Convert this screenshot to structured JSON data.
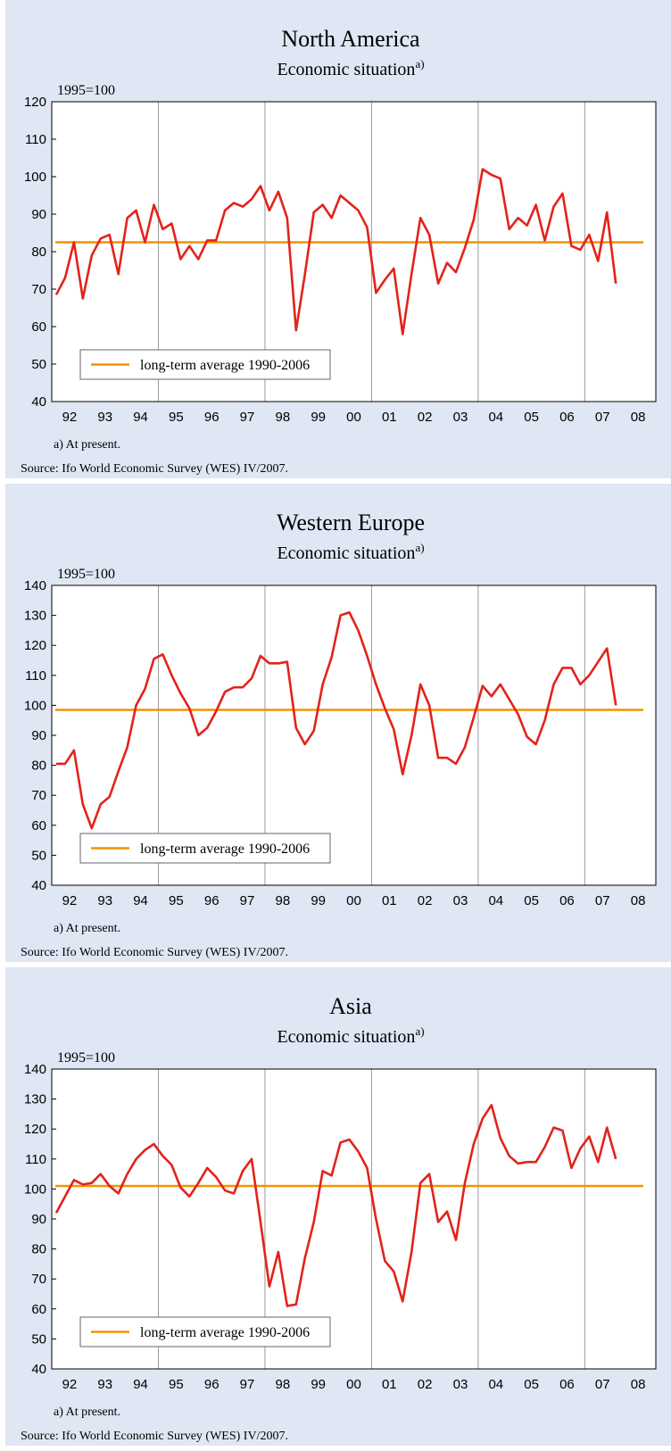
{
  "chart_data": [
    {
      "type": "line",
      "title": "North America",
      "subtitle": "Economic situation",
      "subtitle_note": "a)",
      "y_label": "1995=100",
      "footnote": "a) At present.",
      "source": "Source: Ifo World Economic Survey (WES) IV/2007.",
      "xlim": [
        1992,
        2009
      ],
      "ylim": [
        40,
        120
      ],
      "yticks": [
        40,
        50,
        60,
        70,
        80,
        90,
        100,
        110,
        120
      ],
      "xticks": [
        {
          "value": 1992.5,
          "label": "92"
        },
        {
          "value": 1993.5,
          "label": "93"
        },
        {
          "value": 1994.5,
          "label": "94"
        },
        {
          "value": 1995.5,
          "label": "95"
        },
        {
          "value": 1996.5,
          "label": "96"
        },
        {
          "value": 1997.5,
          "label": "97"
        },
        {
          "value": 1998.5,
          "label": "98"
        },
        {
          "value": 1999.5,
          "label": "99"
        },
        {
          "value": 2000.5,
          "label": "00"
        },
        {
          "value": 2001.5,
          "label": "01"
        },
        {
          "value": 2002.5,
          "label": "02"
        },
        {
          "value": 2003.5,
          "label": "03"
        },
        {
          "value": 2004.5,
          "label": "04"
        },
        {
          "value": 2005.5,
          "label": "05"
        },
        {
          "value": 2006.5,
          "label": "06"
        },
        {
          "value": 2007.5,
          "label": "07"
        },
        {
          "value": 2008.5,
          "label": "08"
        }
      ],
      "xgrid": [
        1995,
        1998,
        2001,
        2004,
        2007
      ],
      "legend": "lower left",
      "x": [
        1992.125,
        1992.375,
        1992.625,
        1992.875,
        1993.125,
        1993.375,
        1993.625,
        1993.875,
        1994.125,
        1994.375,
        1994.625,
        1994.875,
        1995.125,
        1995.375,
        1995.625,
        1995.875,
        1996.125,
        1996.375,
        1996.625,
        1996.875,
        1997.125,
        1997.375,
        1997.625,
        1997.875,
        1998.125,
        1998.375,
        1998.625,
        1998.875,
        1999.125,
        1999.375,
        1999.625,
        1999.875,
        2000.125,
        2000.375,
        2000.625,
        2000.875,
        2001.125,
        2001.375,
        2001.625,
        2001.875,
        2002.125,
        2002.375,
        2002.625,
        2002.875,
        2003.125,
        2003.375,
        2003.625,
        2003.875,
        2004.125,
        2004.375,
        2004.625,
        2004.875,
        2005.125,
        2005.375,
        2005.625,
        2005.875,
        2006.125,
        2006.375,
        2006.625,
        2006.875,
        2007.125,
        2007.375,
        2007.625,
        2007.875
      ],
      "series": [
        {
          "color": "#e2231a",
          "values": [
            68.5,
            73,
            82.5,
            67.5,
            79,
            83.5,
            84.5,
            74,
            89,
            91,
            82.5,
            92.5,
            86,
            87.5,
            78,
            81.5,
            78,
            83,
            83,
            91,
            93,
            92,
            94,
            97.5,
            91,
            96,
            89,
            59,
            74,
            90.5,
            92.5,
            89,
            95,
            93,
            91,
            86.5,
            69,
            72.5,
            75.5,
            58,
            74,
            89,
            84.5,
            71.5,
            77,
            74.5,
            81,
            88.5,
            102,
            100.5,
            99.5,
            86,
            89,
            87,
            92.5,
            83,
            92,
            95.5,
            81.5,
            80.5,
            84.5,
            77.5,
            90.5,
            71.5
          ]
        }
      ],
      "average": {
        "name": "long-term average 1990-2006",
        "color": "#f39200",
        "value": 82.5
      }
    },
    {
      "type": "line",
      "title": "Western Europe",
      "subtitle": "Economic situation",
      "subtitle_note": "a)",
      "y_label": "1995=100",
      "footnote": "a) At present.",
      "source": "Source: Ifo World Economic Survey (WES) IV/2007.",
      "xlim": [
        1992,
        2009
      ],
      "ylim": [
        40,
        140
      ],
      "yticks": [
        40,
        50,
        60,
        70,
        80,
        90,
        100,
        110,
        120,
        130,
        140
      ],
      "xticks": [
        {
          "value": 1992.5,
          "label": "92"
        },
        {
          "value": 1993.5,
          "label": "93"
        },
        {
          "value": 1994.5,
          "label": "94"
        },
        {
          "value": 1995.5,
          "label": "95"
        },
        {
          "value": 1996.5,
          "label": "96"
        },
        {
          "value": 1997.5,
          "label": "97"
        },
        {
          "value": 1998.5,
          "label": "98"
        },
        {
          "value": 1999.5,
          "label": "99"
        },
        {
          "value": 2000.5,
          "label": "00"
        },
        {
          "value": 2001.5,
          "label": "01"
        },
        {
          "value": 2002.5,
          "label": "02"
        },
        {
          "value": 2003.5,
          "label": "03"
        },
        {
          "value": 2004.5,
          "label": "04"
        },
        {
          "value": 2005.5,
          "label": "05"
        },
        {
          "value": 2006.5,
          "label": "06"
        },
        {
          "value": 2007.5,
          "label": "07"
        },
        {
          "value": 2008.5,
          "label": "08"
        }
      ],
      "xgrid": [
        1995,
        1998,
        2001,
        2004,
        2007
      ],
      "legend": "lower left",
      "x": [
        1992.125,
        1992.375,
        1992.625,
        1992.875,
        1993.125,
        1993.375,
        1993.625,
        1993.875,
        1994.125,
        1994.375,
        1994.625,
        1994.875,
        1995.125,
        1995.375,
        1995.625,
        1995.875,
        1996.125,
        1996.375,
        1996.625,
        1996.875,
        1997.125,
        1997.375,
        1997.625,
        1997.875,
        1998.125,
        1998.375,
        1998.625,
        1998.875,
        1999.125,
        1999.375,
        1999.625,
        1999.875,
        2000.125,
        2000.375,
        2000.625,
        2000.875,
        2001.125,
        2001.375,
        2001.625,
        2001.875,
        2002.125,
        2002.375,
        2002.625,
        2002.875,
        2003.125,
        2003.375,
        2003.625,
        2003.875,
        2004.125,
        2004.375,
        2004.625,
        2004.875,
        2005.125,
        2005.375,
        2005.625,
        2005.875,
        2006.125,
        2006.375,
        2006.625,
        2006.875,
        2007.125,
        2007.375,
        2007.625,
        2007.875
      ],
      "series": [
        {
          "color": "#e2231a",
          "values": [
            80.5,
            80.5,
            85,
            67,
            59,
            67,
            69.5,
            78,
            86,
            100,
            105.5,
            115.5,
            117,
            110,
            104,
            99,
            90,
            92.5,
            98,
            104.5,
            106,
            106,
            109,
            116.5,
            114,
            114,
            114.5,
            92.5,
            87,
            91.5,
            107,
            116,
            130,
            131,
            125,
            116.5,
            107,
            99,
            92,
            77,
            90,
            107,
            100,
            82.5,
            82.5,
            80.5,
            86,
            96,
            106.5,
            103,
            107,
            102,
            97,
            89.5,
            87,
            95,
            107,
            112.5,
            112.5,
            107,
            110,
            114.5,
            119,
            100
          ]
        }
      ],
      "average": {
        "name": "long-term average 1990-2006",
        "color": "#f39200",
        "value": 98.5
      }
    },
    {
      "type": "line",
      "title": "Asia",
      "subtitle": "Economic situation",
      "subtitle_note": "a)",
      "y_label": "1995=100",
      "footnote": "a) At present.",
      "source": "Source: Ifo World Economic Survey (WES) IV/2007.",
      "xlim": [
        1992,
        2009
      ],
      "ylim": [
        40,
        140
      ],
      "yticks": [
        40,
        50,
        60,
        70,
        80,
        90,
        100,
        110,
        120,
        130,
        140
      ],
      "xticks": [
        {
          "value": 1992.5,
          "label": "92"
        },
        {
          "value": 1993.5,
          "label": "93"
        },
        {
          "value": 1994.5,
          "label": "94"
        },
        {
          "value": 1995.5,
          "label": "95"
        },
        {
          "value": 1996.5,
          "label": "96"
        },
        {
          "value": 1997.5,
          "label": "97"
        },
        {
          "value": 1998.5,
          "label": "98"
        },
        {
          "value": 1999.5,
          "label": "99"
        },
        {
          "value": 2000.5,
          "label": "00"
        },
        {
          "value": 2001.5,
          "label": "01"
        },
        {
          "value": 2002.5,
          "label": "02"
        },
        {
          "value": 2003.5,
          "label": "03"
        },
        {
          "value": 2004.5,
          "label": "04"
        },
        {
          "value": 2005.5,
          "label": "05"
        },
        {
          "value": 2006.5,
          "label": "06"
        },
        {
          "value": 2007.5,
          "label": "07"
        },
        {
          "value": 2008.5,
          "label": "08"
        }
      ],
      "xgrid": [
        1995,
        1998,
        2001,
        2004,
        2007
      ],
      "legend": "lower left",
      "x": [
        1992.125,
        1992.375,
        1992.625,
        1992.875,
        1993.125,
        1993.375,
        1993.625,
        1993.875,
        1994.125,
        1994.375,
        1994.625,
        1994.875,
        1995.125,
        1995.375,
        1995.625,
        1995.875,
        1996.125,
        1996.375,
        1996.625,
        1996.875,
        1997.125,
        1997.375,
        1997.625,
        1997.875,
        1998.125,
        1998.375,
        1998.625,
        1998.875,
        1999.125,
        1999.375,
        1999.625,
        1999.875,
        2000.125,
        2000.375,
        2000.625,
        2000.875,
        2001.125,
        2001.375,
        2001.625,
        2001.875,
        2002.125,
        2002.375,
        2002.625,
        2002.875,
        2003.125,
        2003.375,
        2003.625,
        2003.875,
        2004.125,
        2004.375,
        2004.625,
        2004.875,
        2005.125,
        2005.375,
        2005.625,
        2005.875,
        2006.125,
        2006.375,
        2006.625,
        2006.875,
        2007.125,
        2007.375,
        2007.625,
        2007.875
      ],
      "series": [
        {
          "color": "#e2231a",
          "values": [
            92,
            97.5,
            103,
            101.5,
            102,
            105,
            101,
            98.5,
            105,
            110,
            113,
            115,
            111,
            108,
            100.5,
            97.5,
            102,
            107,
            104,
            99.5,
            98.5,
            106,
            110,
            89,
            67.5,
            79,
            61,
            61.5,
            77,
            89,
            106,
            104.5,
            115.5,
            116.5,
            112.5,
            107,
            90,
            76,
            72.5,
            62.5,
            79,
            102,
            105,
            89,
            92.5,
            83,
            102,
            115,
            123.5,
            128,
            117,
            111,
            108.5,
            109,
            109,
            114,
            120.5,
            119.5,
            107,
            113.5,
            117.5,
            109,
            120.5,
            110
          ]
        }
      ],
      "average": {
        "name": "long-term average 1990-2006",
        "color": "#f39200",
        "value": 101
      }
    }
  ]
}
